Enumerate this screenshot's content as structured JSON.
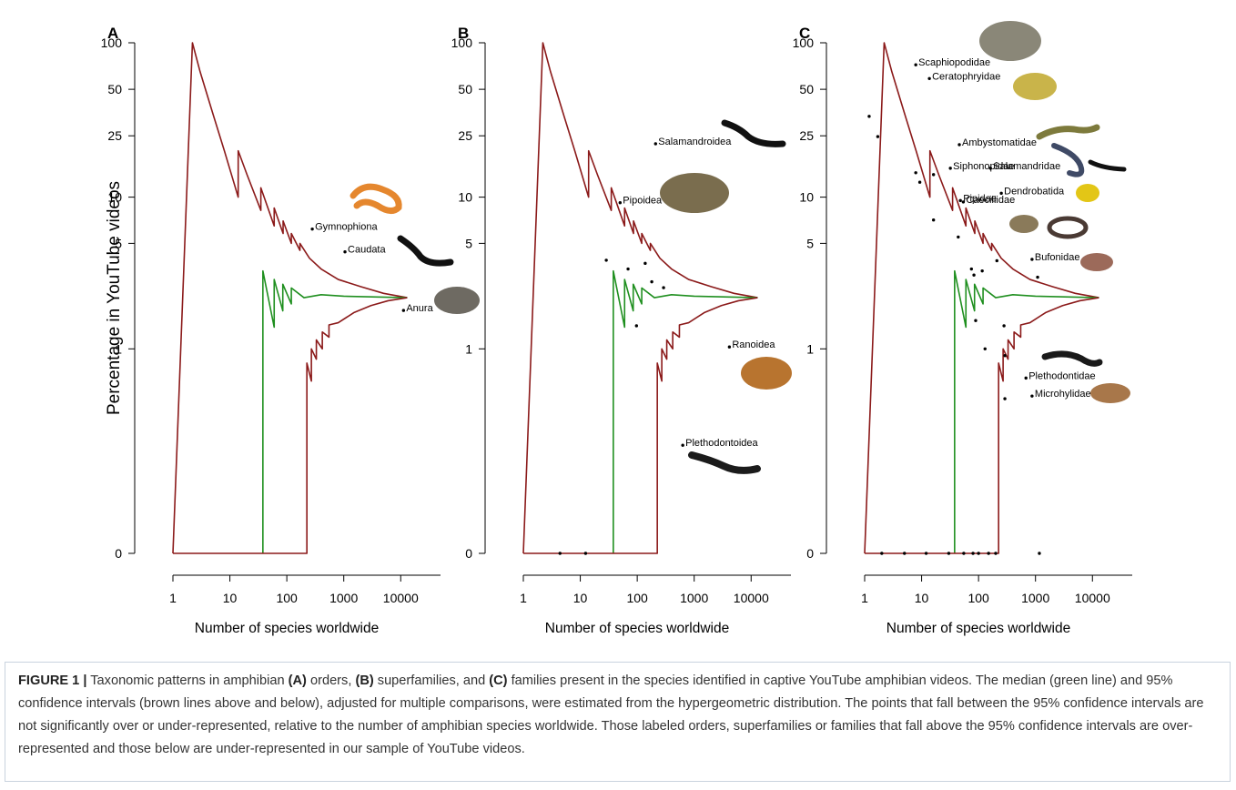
{
  "chart_data": [
    {
      "type": "line",
      "panel_label": "A",
      "ylabel": "Percentage in YouTube videos",
      "xlabel": "Number of species worldwide",
      "xscale": "log",
      "yscale": "log",
      "xlim": [
        1,
        50000
      ],
      "ylim": [
        0,
        100
      ],
      "xticks": [
        1,
        10,
        100,
        1000,
        10000
      ],
      "yticks": [
        0,
        1,
        5,
        10,
        25,
        50,
        100
      ],
      "series": [
        {
          "color": "#8b1a1a",
          "x": [
            1,
            2.2,
            3,
            5,
            8,
            14,
            14,
            20,
            35,
            35,
            60,
            60,
            86,
            86,
            120,
            120,
            170,
            170,
            250,
            400,
            800,
            2000,
            5000,
            13000
          ],
          "values": [
            0,
            100,
            65,
            35,
            20,
            10,
            20,
            14,
            8.2,
            11.5,
            6.5,
            8.5,
            5.8,
            7,
            5,
            5.8,
            4.5,
            5,
            4,
            3.4,
            2.9,
            2.6,
            2.35,
            2.2
          ]
        },
        {
          "color": "#1f8f1f",
          "x": [
            38,
            38,
            60,
            60,
            85,
            85,
            120,
            120,
            200,
            400,
            1000,
            13000
          ],
          "values": [
            0,
            3.3,
            1.4,
            2.9,
            1.8,
            2.7,
            2,
            2.55,
            2.2,
            2.3,
            2.25,
            2.2
          ]
        },
        {
          "color": "#8b1a1a",
          "x": [
            1,
            225,
            225,
            270,
            270,
            330,
            330,
            420,
            420,
            550,
            550,
            800,
            1500,
            3000,
            6000,
            13000
          ],
          "values": [
            0,
            0,
            0.8,
            0.6,
            1,
            0.85,
            1.15,
            1,
            1.3,
            1.2,
            1.45,
            1.5,
            1.75,
            1.95,
            2.1,
            2.2
          ]
        }
      ],
      "points": {
        "x": [
          280,
          1050,
          11200
        ],
        "values": [
          6.2,
          4.4,
          1.81
        ],
        "labels": [
          "Gymnophiona",
          "Caudata",
          "Anura"
        ]
      }
    },
    {
      "type": "line",
      "panel_label": "B",
      "xlabel": "Number of species worldwide",
      "xscale": "log",
      "yscale": "log",
      "xlim": [
        1,
        50000
      ],
      "ylim": [
        0,
        100
      ],
      "xticks": [
        1,
        10,
        100,
        1000,
        10000
      ],
      "yticks": [
        0,
        1,
        5,
        10,
        25,
        50,
        100
      ],
      "series": [
        {
          "color": "#8b1a1a",
          "x": [
            1,
            2.2,
            3,
            5,
            8,
            14,
            14,
            20,
            35,
            35,
            60,
            60,
            86,
            86,
            120,
            120,
            170,
            170,
            250,
            400,
            800,
            2000,
            5000,
            13000
          ],
          "values": [
            0,
            100,
            65,
            35,
            20,
            10,
            20,
            14,
            8.2,
            11.5,
            6.5,
            8.5,
            5.8,
            7,
            5,
            5.8,
            4.5,
            5,
            4,
            3.4,
            2.9,
            2.6,
            2.35,
            2.2
          ]
        },
        {
          "color": "#1f8f1f",
          "x": [
            38,
            38,
            60,
            60,
            85,
            85,
            120,
            120,
            200,
            400,
            1000,
            13000
          ],
          "values": [
            0,
            3.3,
            1.4,
            2.9,
            1.8,
            2.7,
            2,
            2.55,
            2.2,
            2.3,
            2.25,
            2.2
          ]
        },
        {
          "color": "#8b1a1a",
          "x": [
            1,
            225,
            225,
            270,
            270,
            330,
            330,
            420,
            420,
            550,
            550,
            800,
            1500,
            3000,
            6000,
            13000
          ],
          "values": [
            0,
            0,
            0.8,
            0.6,
            1,
            0.85,
            1.15,
            1,
            1.3,
            1.2,
            1.45,
            1.5,
            1.75,
            1.95,
            2.1,
            2.2
          ]
        }
      ],
      "points": {
        "x": [
          210,
          50,
          4150,
          630,
          28.6,
          69,
          138,
          180,
          290,
          97,
          4.4,
          12.4
        ],
        "values": [
          22.2,
          9.2,
          1.03,
          0.2,
          3.88,
          3.4,
          3.7,
          2.8,
          2.56,
          1.43,
          0,
          0
        ],
        "labels": [
          "Salamandroidea",
          "Pipoidea",
          "Ranoidea",
          "Plethodontoidea",
          null,
          null,
          null,
          null,
          null,
          null,
          null,
          null
        ]
      }
    },
    {
      "type": "line",
      "panel_label": "C",
      "xlabel": "Number of species worldwide",
      "xscale": "log",
      "yscale": "log",
      "xlim": [
        1,
        50000
      ],
      "ylim": [
        0,
        100
      ],
      "xticks": [
        1,
        10,
        100,
        1000,
        10000
      ],
      "yticks": [
        0,
        1,
        5,
        10,
        25,
        50,
        100
      ],
      "series": [
        {
          "color": "#8b1a1a",
          "x": [
            1,
            2.2,
            3,
            5,
            8,
            14,
            14,
            20,
            35,
            35,
            60,
            60,
            86,
            86,
            120,
            120,
            170,
            170,
            250,
            400,
            800,
            2000,
            5000,
            13000
          ],
          "values": [
            0,
            100,
            65,
            35,
            20,
            10,
            20,
            14,
            8.2,
            11.5,
            6.5,
            8.5,
            5.8,
            7,
            5,
            5.8,
            4.5,
            5,
            4,
            3.4,
            2.9,
            2.6,
            2.35,
            2.2
          ]
        },
        {
          "color": "#1f8f1f",
          "x": [
            38,
            38,
            60,
            60,
            85,
            85,
            120,
            120,
            200,
            400,
            1000,
            13000
          ],
          "values": [
            0,
            3.3,
            1.4,
            2.9,
            1.8,
            2.7,
            2,
            2.55,
            2.2,
            2.3,
            2.25,
            2.2
          ]
        },
        {
          "color": "#8b1a1a",
          "x": [
            1,
            225,
            225,
            270,
            270,
            330,
            330,
            420,
            420,
            550,
            550,
            800,
            1500,
            3000,
            6000,
            13000
          ],
          "values": [
            0,
            0,
            0.8,
            0.6,
            1,
            0.85,
            1.15,
            1,
            1.3,
            1.2,
            1.45,
            1.5,
            1.75,
            1.95,
            2.1,
            2.2
          ]
        }
      ],
      "points": {
        "x": [
          7.9,
          13.7,
          46,
          32,
          162,
          251,
          48,
          54,
          870,
          680,
          870,
          1.2,
          1.7,
          7.9,
          9.3,
          16.2,
          16.2,
          44,
          75,
          83,
          116,
          210,
          1090,
          89,
          280,
          130,
          290,
          290,
          2,
          5,
          12,
          30,
          55,
          80,
          100,
          150,
          200,
          1170
        ],
        "values": [
          72,
          58.7,
          21.9,
          15.4,
          15.4,
          10.6,
          9.5,
          9.3,
          3.93,
          0.63,
          0.47,
          33.4,
          24.7,
          14.4,
          12.5,
          14,
          7.1,
          5.5,
          3.4,
          3.1,
          3.3,
          3.85,
          3,
          1.55,
          1.43,
          1,
          0.9,
          0.45,
          0,
          0,
          0,
          0,
          0,
          0,
          0,
          0,
          0,
          0
        ],
        "labels": [
          "Scaphiopodidae",
          "Ceratophryidae",
          "Ambystomatidae",
          "Siphonopidae",
          "Salamandridae",
          "Dendrobatida",
          "Pipidae",
          "Caeciliidae",
          "Bufonidae",
          "Plethodontidae",
          "Microhylidae",
          null,
          null,
          null,
          null,
          null,
          null,
          null,
          null,
          null,
          null,
          null,
          null,
          null,
          null,
          null,
          null,
          null,
          null,
          null,
          null,
          null,
          null,
          null,
          null,
          null,
          null,
          null
        ]
      }
    }
  ],
  "caption": [
    {
      "text": "FIGURE 1 |",
      "bold": true
    },
    {
      "text": " Taxonomic patterns in amphibian ",
      "bold": false
    },
    {
      "text": "(A)",
      "bold": true
    },
    {
      "text": " orders, ",
      "bold": false
    },
    {
      "text": "(B)",
      "bold": true
    },
    {
      "text": " superfamilies, and ",
      "bold": false
    },
    {
      "text": "(C)",
      "bold": true
    },
    {
      "text": " families present in the species identified in captive YouTube amphibian videos. The median (green line) and 95% confidence intervals (brown lines above and below), adjusted for multiple comparisons, were estimated from the hypergeometric distribution. The points that fall between the 95% confidence intervals are not significantly over or under-represented, relative to the number of amphibian species worldwide. Those labeled orders, superfamilies or families that fall above the 95% confidence intervals are over-represented and those below are under-represented in our sample of YouTube videos.",
      "bold": false
    }
  ]
}
